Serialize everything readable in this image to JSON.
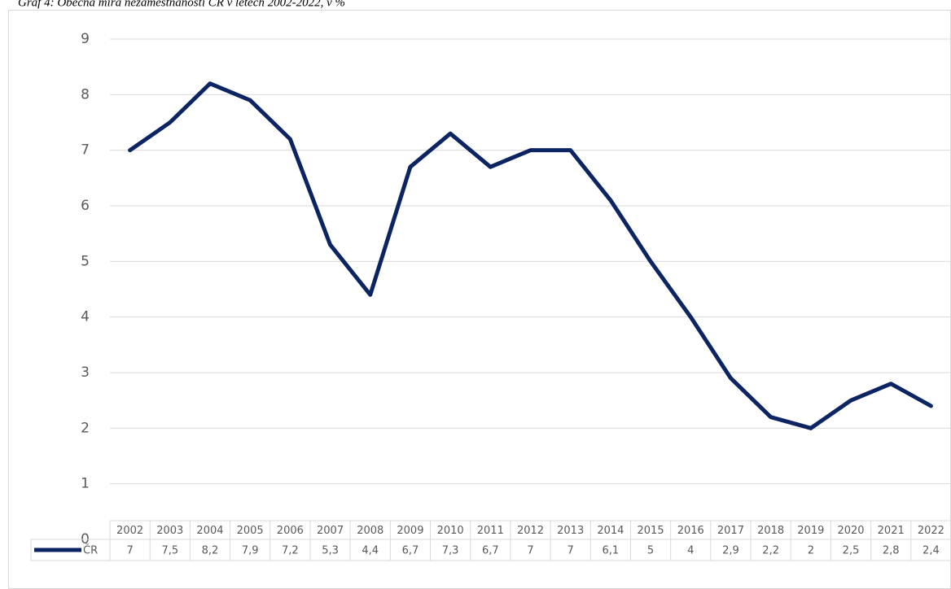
{
  "chart_data": {
    "type": "line",
    "title": "Graf 4: Obecná míra nezaměstnanosti ČR v letech 2002-2022, v %",
    "categories": [
      "2002",
      "2003",
      "2004",
      "2005",
      "2006",
      "2007",
      "2008",
      "2009",
      "2010",
      "2011",
      "2012",
      "2013",
      "2014",
      "2015",
      "2016",
      "2017",
      "2018",
      "2019",
      "2020",
      "2021",
      "2022"
    ],
    "series": [
      {
        "name": "ČR",
        "color": "#0d2463",
        "values": [
          7,
          7.5,
          8.2,
          7.9,
          7.2,
          5.3,
          4.4,
          6.7,
          7.3,
          6.7,
          7,
          7,
          6.1,
          5,
          4,
          2.9,
          2.2,
          2,
          2.5,
          2.8,
          2.4
        ],
        "value_labels": [
          "7",
          "7,5",
          "8,2",
          "7,9",
          "7,2",
          "5,3",
          "4,4",
          "6,7",
          "7,3",
          "6,7",
          "7",
          "7",
          "6,1",
          "5",
          "4",
          "2,9",
          "2,2",
          "2",
          "2,5",
          "2,8",
          "2,4"
        ]
      }
    ],
    "ylim": [
      0,
      9
    ],
    "yticks": [
      0,
      1,
      2,
      3,
      4,
      5,
      6,
      7,
      8,
      9
    ],
    "grid": true
  }
}
